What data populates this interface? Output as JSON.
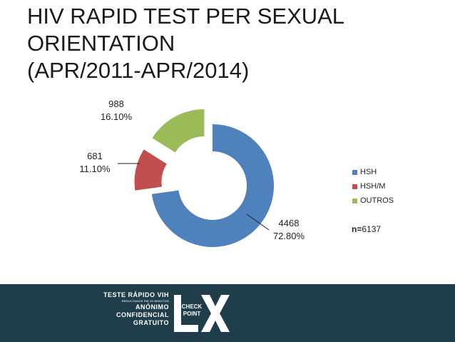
{
  "title": {
    "line1": "HIV RAPID TEST PER SEXUAL",
    "line2": "ORIENTATION",
    "line3": "(APR/2011-APR/2014)"
  },
  "chart_data": {
    "type": "pie",
    "title": "HIV RAPID TEST PER SEXUAL ORIENTATION (APR/2011-APR/2014)",
    "series": [
      {
        "name": "HSH",
        "value": 4468,
        "percent_label": "72.80%",
        "value_label": "4468",
        "color": "#4f81bd"
      },
      {
        "name": "HSH/M",
        "value": 681,
        "percent_label": "11.10%",
        "value_label": "681",
        "color": "#c0504d"
      },
      {
        "name": "OUTROS",
        "value": 988,
        "percent_label": "16.10%",
        "value_label": "988",
        "color": "#9bbb59"
      }
    ],
    "legend_position": "right",
    "style": "exploded doughnut"
  },
  "n_label": {
    "prefix": "n=",
    "value": "6137"
  },
  "footer": {
    "line1": "TESTE RÁPIDO VIH",
    "line2": "RESULTADOS EM 30 MINUTOS",
    "line3": "ANÓNIMO",
    "line4": "CONFIDENCIAL",
    "line5": "GRATUITO",
    "logo_text1": "CHECK",
    "logo_text2": "POINT",
    "logo_letters": "LX"
  }
}
